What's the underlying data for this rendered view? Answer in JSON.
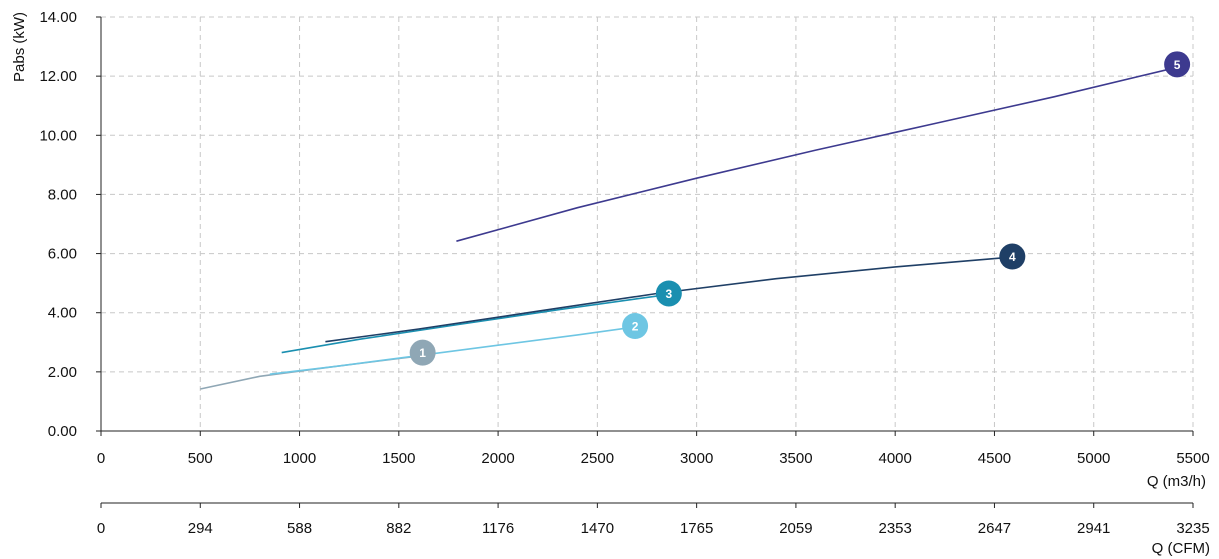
{
  "chart_data": {
    "type": "line",
    "ylabel": "Pabs (kW)",
    "xlabel": "Q (m3/h)",
    "x2label": "Q (CFM)",
    "xlim": [
      0,
      5500
    ],
    "ylim": [
      0,
      14
    ],
    "yticks": [
      "0.00",
      "2.00",
      "4.00",
      "6.00",
      "8.00",
      "10.00",
      "12.00",
      "14.00"
    ],
    "xticks": [
      "0",
      "500",
      "1000",
      "1500",
      "2000",
      "2500",
      "3000",
      "3500",
      "4000",
      "4500",
      "5000",
      "5500"
    ],
    "x2ticks": [
      "0",
      "294",
      "588",
      "882",
      "1176",
      "1470",
      "1765",
      "2059",
      "2353",
      "2647",
      "2941",
      "3235"
    ],
    "grid": true,
    "series": [
      {
        "name": "1",
        "color": "#8fa7b5",
        "marker_x": 1620,
        "marker_y": 2.65,
        "x": [
          500,
          800,
          1200,
          1620
        ],
        "y": [
          1.42,
          1.85,
          2.2,
          2.55
        ]
      },
      {
        "name": "2",
        "color": "#6ec6e3",
        "marker_x": 2690,
        "marker_y": 3.55,
        "x": [
          850,
          1200,
          1600,
          2000,
          2400,
          2690
        ],
        "y": [
          1.92,
          2.2,
          2.55,
          2.9,
          3.25,
          3.52
        ]
      },
      {
        "name": "3",
        "color": "#1a8fb0",
        "marker_x": 2860,
        "marker_y": 4.65,
        "x": [
          910,
          1300,
          1800,
          2300,
          2860
        ],
        "y": [
          2.65,
          3.1,
          3.6,
          4.1,
          4.62
        ]
      },
      {
        "name": "4",
        "color": "#1f3f66",
        "marker_x": 4590,
        "marker_y": 5.9,
        "x": [
          1130,
          1600,
          2200,
          2800,
          3400,
          4000,
          4590
        ],
        "y": [
          3.02,
          3.45,
          4.05,
          4.65,
          5.15,
          5.55,
          5.88
        ]
      },
      {
        "name": "5",
        "color": "#3d3a8f",
        "marker_x": 5420,
        "marker_y": 12.4,
        "x": [
          1790,
          2400,
          3000,
          3600,
          4200,
          4800,
          5420
        ],
        "y": [
          6.42,
          7.55,
          8.55,
          9.5,
          10.4,
          11.3,
          12.3
        ]
      }
    ]
  }
}
